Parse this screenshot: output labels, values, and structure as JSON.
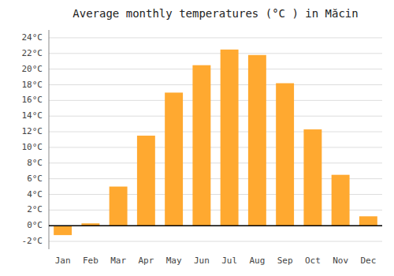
{
  "chart_data": {
    "type": "bar",
    "title": "Average monthly temperatures (°C ) in Măcin",
    "categories": [
      "Jan",
      "Feb",
      "Mar",
      "Apr",
      "May",
      "Jun",
      "Jul",
      "Aug",
      "Sep",
      "Oct",
      "Nov",
      "Dec"
    ],
    "values": [
      -1.2,
      0.3,
      5.0,
      11.5,
      17.0,
      20.5,
      22.5,
      21.8,
      18.2,
      12.3,
      6.5,
      1.2
    ],
    "color": "#FFA930",
    "ylim": [
      -3,
      25
    ],
    "yticks": [
      {
        "value": -2,
        "label": "-2°C"
      },
      {
        "value": 0,
        "label": "0°C"
      },
      {
        "value": 2,
        "label": "2°C"
      },
      {
        "value": 4,
        "label": "4°C"
      },
      {
        "value": 6,
        "label": "6°C"
      },
      {
        "value": 8,
        "label": "8°C"
      },
      {
        "value": 10,
        "label": "10°C"
      },
      {
        "value": 12,
        "label": "12°C"
      },
      {
        "value": 14,
        "label": "14°C"
      },
      {
        "value": 16,
        "label": "16°C"
      },
      {
        "value": 18,
        "label": "18°C"
      },
      {
        "value": 20,
        "label": "20°C"
      },
      {
        "value": 22,
        "label": "22°C"
      },
      {
        "value": 24,
        "label": "24°C"
      }
    ],
    "grid": true
  }
}
